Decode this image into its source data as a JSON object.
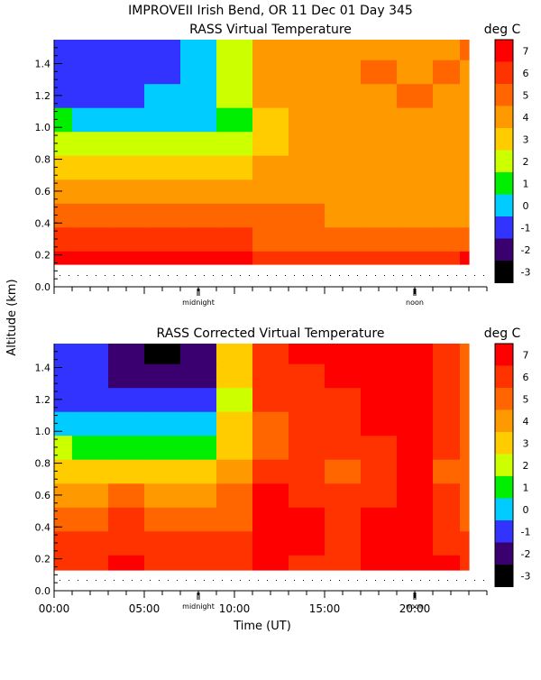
{
  "header": {
    "title_line": "IMPROVEII  Irish Bend, OR   11 Dec 01 Day 345"
  },
  "shared": {
    "ylabel": "Altitude (km)",
    "xlabel": "Time (UT)",
    "colorbar_unit": "deg C",
    "colorbar_ticks": [
      "7",
      "6",
      "5",
      "4",
      "3",
      "2",
      "1",
      "0",
      "-1",
      "-2",
      "-3"
    ],
    "colorbar_colors": [
      "#ff0000",
      "#ff3300",
      "#ff6600",
      "#ff9900",
      "#ffcc00",
      "#ccff00",
      "#00ee00",
      "#00ccff",
      "#3333ff",
      "#3a0070",
      "#000000"
    ],
    "marker_midnight": "midnight",
    "marker_noon": "noon"
  },
  "chart_data": [
    {
      "type": "heatmap",
      "title": "RASS Virtual Temperature",
      "xlabel": "",
      "ylabel": "Altitude (km)",
      "xlim": [
        0,
        24
      ],
      "ylim": [
        0,
        1.55
      ],
      "yticks": [
        "0.0",
        "0.2",
        "0.4",
        "0.6",
        "0.8",
        "1.0",
        "1.2",
        "1.4"
      ],
      "xticks": [],
      "z_unit": "deg C",
      "z_range": [
        -3,
        7
      ],
      "time_hours": [
        0,
        2,
        4,
        6,
        8,
        10,
        12,
        14,
        16,
        18,
        20,
        22,
        23
      ],
      "altitude_km": [
        0.15,
        0.3,
        0.45,
        0.6,
        0.75,
        0.9,
        1.05,
        1.2,
        1.35,
        1.5
      ],
      "z_values": [
        [
          7,
          7,
          7,
          7,
          7,
          7,
          6,
          6,
          6,
          6,
          6,
          6,
          7
        ],
        [
          6,
          6,
          6,
          6,
          6,
          6,
          5,
          5,
          5,
          5,
          5,
          5,
          5
        ],
        [
          5,
          5,
          5,
          5,
          5,
          5,
          5,
          5,
          4,
          4,
          4,
          4,
          4
        ],
        [
          4,
          4,
          4,
          4,
          4,
          4,
          4,
          4,
          4,
          4,
          4,
          4,
          4
        ],
        [
          3,
          3,
          3,
          3,
          3,
          3,
          4,
          4,
          4,
          4,
          4,
          4,
          4
        ],
        [
          2,
          2,
          2,
          2,
          2,
          2,
          3,
          4,
          4,
          4,
          4,
          4,
          4
        ],
        [
          1,
          0,
          0,
          0,
          0,
          1,
          3,
          4,
          4,
          4,
          4,
          4,
          4
        ],
        [
          -1,
          -1,
          -1,
          0,
          0,
          2,
          4,
          4,
          4,
          4,
          5,
          4,
          4
        ],
        [
          -1,
          -1,
          -1,
          -1,
          0,
          2,
          4,
          4,
          4,
          5,
          4,
          5,
          4
        ],
        [
          -1,
          -1,
          -1,
          -1,
          0,
          2,
          4,
          4,
          4,
          4,
          4,
          4,
          5
        ]
      ]
    },
    {
      "type": "heatmap",
      "title": "RASS Corrected Virtual Temperature",
      "xlabel": "Time (UT)",
      "ylabel": "Altitude (km)",
      "xlim": [
        0,
        24
      ],
      "ylim": [
        0,
        1.55
      ],
      "yticks": [
        "0.0",
        "0.2",
        "0.4",
        "0.6",
        "0.8",
        "1.0",
        "1.2",
        "1.4"
      ],
      "xticks": [
        "00:00",
        "05:00",
        "10:00",
        "15:00",
        "20:00"
      ],
      "z_unit": "deg C",
      "z_range": [
        -3,
        7
      ],
      "time_hours": [
        0,
        2,
        4,
        6,
        8,
        10,
        12,
        14,
        16,
        18,
        20,
        22,
        23
      ],
      "altitude_km": [
        0.15,
        0.3,
        0.45,
        0.6,
        0.75,
        0.9,
        1.05,
        1.2,
        1.35,
        1.5
      ],
      "z_values": [
        [
          6,
          6,
          7,
          6,
          6,
          6,
          7,
          6,
          6,
          7,
          7,
          7,
          6
        ],
        [
          6,
          6,
          6,
          6,
          6,
          6,
          7,
          7,
          6,
          7,
          7,
          6,
          6
        ],
        [
          5,
          5,
          6,
          5,
          5,
          5,
          7,
          7,
          6,
          7,
          7,
          6,
          5
        ],
        [
          4,
          4,
          5,
          4,
          4,
          5,
          7,
          6,
          6,
          6,
          7,
          6,
          5
        ],
        [
          3,
          3,
          3,
          3,
          3,
          4,
          6,
          6,
          5,
          6,
          7,
          5,
          5
        ],
        [
          2,
          1,
          1,
          1,
          1,
          3,
          5,
          6,
          6,
          6,
          7,
          6,
          5
        ],
        [
          0,
          0,
          0,
          0,
          0,
          3,
          5,
          6,
          6,
          7,
          7,
          6,
          5
        ],
        [
          -1,
          -1,
          -1,
          -1,
          -1,
          2,
          6,
          6,
          6,
          7,
          7,
          6,
          5
        ],
        [
          -1,
          -1,
          -2,
          -2,
          -2,
          3,
          6,
          6,
          7,
          7,
          7,
          6,
          5
        ],
        [
          -1,
          -1,
          -2,
          -3,
          -2,
          3,
          6,
          7,
          7,
          7,
          7,
          6,
          5
        ]
      ]
    }
  ]
}
